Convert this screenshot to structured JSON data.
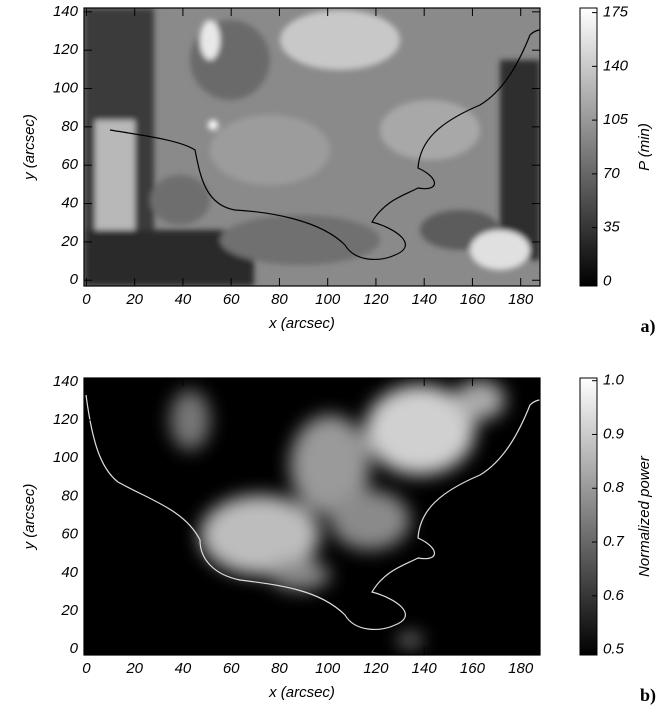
{
  "chart_data": [
    {
      "type": "image",
      "xlabel": "x (arcsec)",
      "ylabel": "y (arcsec)",
      "xlim": [
        -1,
        188
      ],
      "xticks": [
        0,
        20,
        40,
        60,
        80,
        100,
        120,
        140,
        160,
        180
      ],
      "ylim": [
        -3,
        142
      ],
      "yticks": [
        0,
        20,
        40,
        60,
        80,
        100,
        120,
        140
      ],
      "colorbar_label": "P (min)",
      "clim": [
        -3,
        178
      ],
      "cticks": [
        0,
        35,
        70,
        105,
        140,
        175
      ],
      "panel_label": "a)"
    },
    {
      "type": "image",
      "xlabel": "x (arcsec)",
      "ylabel": "y (arcsec)",
      "xlim": [
        -1,
        188
      ],
      "xticks": [
        0,
        20,
        40,
        60,
        80,
        100,
        120,
        140,
        160,
        180
      ],
      "ylim": [
        -3,
        142
      ],
      "yticks": [
        0,
        20,
        40,
        60,
        80,
        100,
        120,
        140
      ],
      "colorbar_label": "Normalized power",
      "clim": [
        0.49,
        1.005
      ],
      "cticks": [
        {
          "value": 0.5,
          "label": "0.5"
        },
        {
          "value": 0.6,
          "label": "0.6"
        },
        {
          "value": 0.7,
          "label": "0.7"
        },
        {
          "value": 0.8,
          "label": "0.8"
        },
        {
          "value": 0.9,
          "label": "0.9"
        },
        {
          "value": 1.0,
          "label": "1.0"
        }
      ],
      "panel_label": "b)"
    }
  ]
}
